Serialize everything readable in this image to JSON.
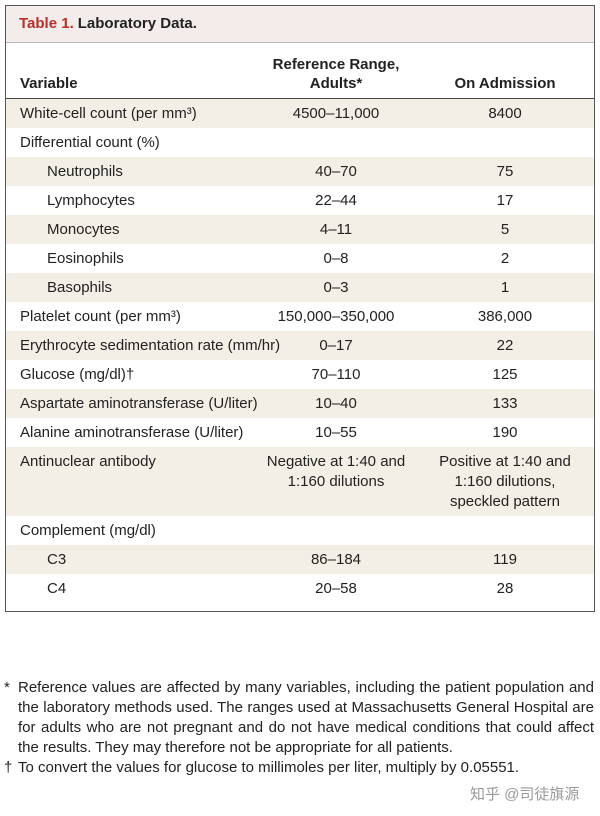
{
  "table": {
    "label": "Table 1.",
    "title": "Laboratory Data.",
    "columns": [
      "Variable",
      "Reference Range, Adults*",
      "On Admission"
    ],
    "rows": [
      {
        "variable": "White-cell count (per mm³)",
        "reference": "4500–11,000",
        "admission": "8400"
      },
      {
        "variable": "Differential count (%)",
        "subrows": [
          {
            "variable": "Neutrophils",
            "reference": "40–70",
            "admission": "75"
          },
          {
            "variable": "Lymphocytes",
            "reference": "22–44",
            "admission": "17"
          },
          {
            "variable": "Monocytes",
            "reference": "4–11",
            "admission": "5"
          },
          {
            "variable": "Eosinophils",
            "reference": "0–8",
            "admission": "2"
          },
          {
            "variable": "Basophils",
            "reference": "0–3",
            "admission": "1"
          }
        ]
      },
      {
        "variable": "Platelet count (per mm³)",
        "reference": "150,000–350,000",
        "admission": "386,000"
      },
      {
        "variable": "Erythrocyte sedimentation rate (mm/hr)",
        "reference": "0–17",
        "admission": "22"
      },
      {
        "variable": "Glucose (mg/dl)†",
        "reference": "70–110",
        "admission": "125"
      },
      {
        "variable": "Aspartate aminotransferase (U/liter)",
        "reference": "10–40",
        "admission": "133"
      },
      {
        "variable": "Alanine aminotransferase (U/liter)",
        "reference": "10–55",
        "admission": "190"
      },
      {
        "variable": "Antinuclear antibody",
        "reference": "Negative at 1:40 and 1:160 dilutions",
        "admission": "Positive at 1:40 and 1:160 dilutions, speckled pattern"
      },
      {
        "variable": "Complement (mg/dl)",
        "subrows": [
          {
            "variable": "C3",
            "reference": "86–184",
            "admission": "119"
          },
          {
            "variable": "C4",
            "reference": "20–58",
            "admission": "28"
          }
        ]
      }
    ]
  },
  "footnotes": [
    {
      "mark": "*",
      "text": "Reference values are affected by many variables, including the patient population and the laboratory methods used. The ranges used at Massachusetts General Hospital are for adults who are not pregnant and do not have medical conditions that could affect the results. They may therefore not be appropriate for all patients."
    },
    {
      "mark": "†",
      "text": "To convert the values for glucose to millimoles per liter, multiply by 0.05551."
    }
  ],
  "watermark": "知乎 @司徒旗源"
}
